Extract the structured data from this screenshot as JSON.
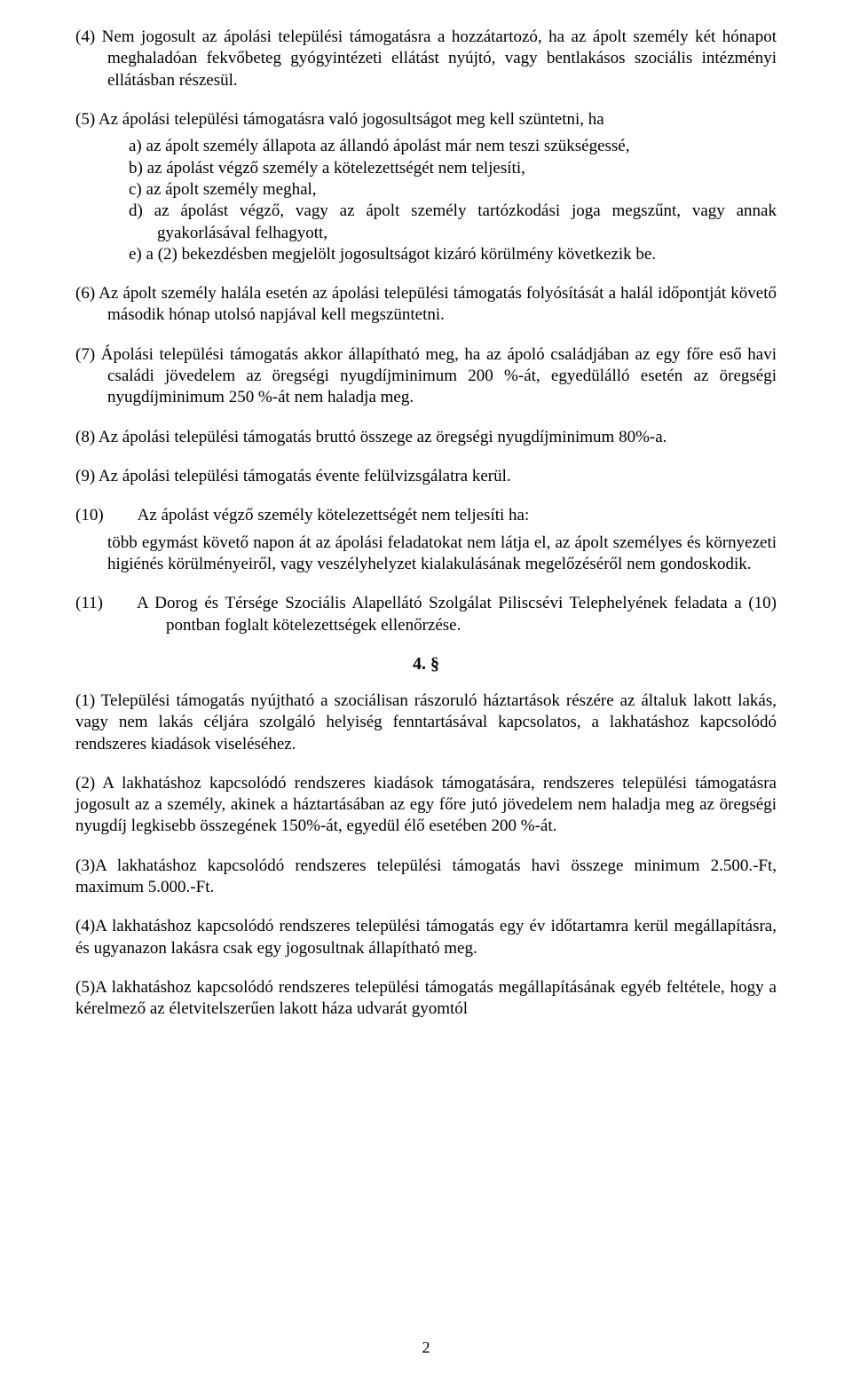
{
  "p4": "(4) Nem jogosult az ápolási települési támogatásra a hozzátartozó, ha az ápolt személy két hónapot meghaladóan fekvőbeteg gyógyintézeti ellátást nyújtó, vagy bentlakásos szociális intézményi ellátásban részesül.",
  "p5_lead": "(5) Az ápolási települési támogatásra való jogosultságot meg kell szüntetni, ha",
  "p5_a": "a) az ápolt személy állapota az állandó ápolást már nem teszi szükségessé,",
  "p5_b": "b) az ápolást végző személy a kötelezettségét nem teljesíti,",
  "p5_c": "c) az ápolt személy meghal,",
  "p5_d": "d) az ápolást végző, vagy az ápolt személy tartózkodási joga megszűnt, vagy annak gyakorlásával felhagyott,",
  "p5_e": "e) a (2) bekezdésben megjelölt jogosultságot kizáró körülmény következik be.",
  "p6": "(6) Az ápolt személy halála esetén az ápolási települési támogatás folyósítását a halál időpontját követő második hónap utolsó napjával kell megszüntetni.",
  "p7": "(7) Ápolási települési támogatás akkor állapítható meg, ha az ápoló családjában az egy főre eső havi családi jövedelem az öregségi nyugdíjminimum 200 %-át, egyedülálló esetén az öregségi nyugdíjminimum 250 %-át nem haladja meg.",
  "p8": "(8) Az ápolási települési támogatás bruttó összege az öregségi nyugdíjminimum 80%-a.",
  "p9": "(9) Az ápolási települési támogatás évente felülvizsgálatra kerül.",
  "p10_lead": "(10)  Az ápolást végző személy kötelezettségét nem teljesíti ha:",
  "p10_rest": "több egymást követő napon át az ápolási feladatokat nem látja el, az ápolt személyes és környezeti higiénés körülményeiről, vagy veszélyhelyzet kialakulásának megelőzéséről nem gondoskodik.",
  "p11": "(11)  A Dorog és Térsége Szociális Alapellátó Szolgálat Piliscsévi Telephelyének feladata a (10) pontban foglalt kötelezettségek ellenőrzése.",
  "section": "4. §",
  "s4_p1": "(1) Települési támogatás nyújtható a szociálisan rászoruló háztartások részére az általuk lakott lakás, vagy nem lakás céljára szolgáló helyiség fenntartásával kapcsolatos, a lakhatáshoz kapcsolódó rendszeres kiadások viseléséhez.",
  "s4_p2": "(2) A lakhatáshoz kapcsolódó rendszeres kiadások támogatására, rendszeres települési támogatásra jogosult az a személy, akinek a háztartásában az egy főre jutó jövedelem nem haladja meg az öregségi nyugdíj legkisebb összegének 150%-át, egyedül élő esetében 200 %-át.",
  "s4_p3": "(3)A lakhatáshoz kapcsolódó rendszeres települési támogatás havi összege minimum 2.500.-Ft, maximum 5.000.-Ft.",
  "s4_p4": "(4)A lakhatáshoz kapcsolódó rendszeres települési támogatás egy év időtartamra kerül megállapításra, és ugyanazon lakásra csak egy jogosultnak állapítható meg.",
  "s4_p5": "(5)A lakhatáshoz kapcsolódó rendszeres települési támogatás megállapításának egyéb feltétele, hogy a kérelmező az életvitelszerűen lakott háza udvarát gyomtól",
  "pageNumber": "2"
}
